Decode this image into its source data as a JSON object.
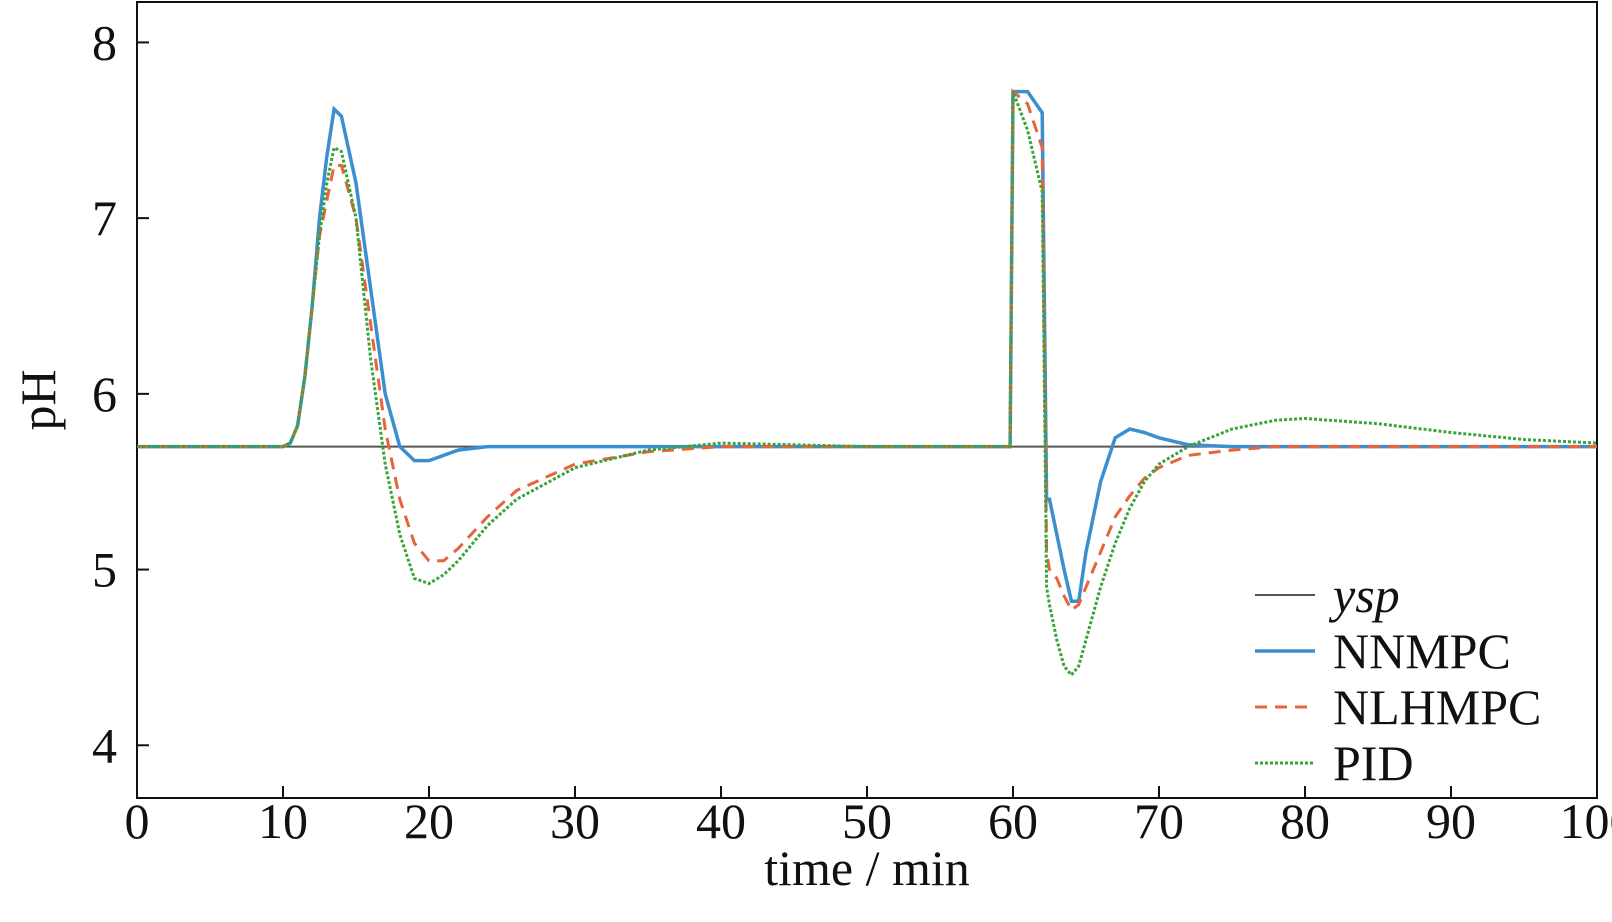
{
  "chart_data": {
    "type": "line",
    "xlabel": "time / min",
    "ylabel": "pH",
    "xlim": [
      0,
      100
    ],
    "xticks": [
      0,
      10,
      20,
      30,
      40,
      50,
      60,
      70,
      80,
      90,
      100
    ],
    "ylim": [
      3.7,
      8.23
    ],
    "yticks": [
      4,
      5,
      6,
      7,
      8
    ],
    "grid": false,
    "legend": "lower right",
    "x": [
      0,
      10,
      10.5,
      11,
      11.5,
      12,
      12.5,
      13,
      13.5,
      14,
      15,
      16,
      17,
      18,
      19,
      20,
      21,
      22,
      24,
      26,
      30,
      35,
      40,
      45,
      50,
      55,
      59.8,
      60,
      61,
      62,
      62.3,
      62.5,
      63,
      63.5,
      64,
      64.5,
      65,
      66,
      67,
      68,
      69,
      70,
      72,
      75,
      78,
      80,
      85,
      90,
      95,
      100
    ],
    "series": [
      {
        "name": "ysp",
        "color": "#555555",
        "dash": "solid",
        "width": 2,
        "values": [
          5.7,
          5.7,
          5.7,
          5.7,
          5.7,
          5.7,
          5.7,
          5.7,
          5.7,
          5.7,
          5.7,
          5.7,
          5.7,
          5.7,
          5.7,
          5.7,
          5.7,
          5.7,
          5.7,
          5.7,
          5.7,
          5.7,
          5.7,
          5.7,
          5.7,
          5.7,
          5.7,
          5.7,
          5.7,
          5.7,
          5.7,
          5.7,
          5.7,
          5.7,
          5.7,
          5.7,
          5.7,
          5.7,
          5.7,
          5.7,
          5.7,
          5.7,
          5.7,
          5.7,
          5.7,
          5.7,
          5.7,
          5.7,
          5.7,
          5.7
        ]
      },
      {
        "name": "NNMPC",
        "color": "#3b8fd0",
        "dash": "solid",
        "width": 3.5,
        "values": [
          5.7,
          5.7,
          5.72,
          5.82,
          6.1,
          6.5,
          7.0,
          7.35,
          7.62,
          7.58,
          7.2,
          6.6,
          6.0,
          5.7,
          5.62,
          5.62,
          5.65,
          5.68,
          5.7,
          5.7,
          5.7,
          5.7,
          5.7,
          5.7,
          5.7,
          5.7,
          5.7,
          7.72,
          7.72,
          7.6,
          5.4,
          5.4,
          5.2,
          5.0,
          4.82,
          4.82,
          5.1,
          5.5,
          5.75,
          5.8,
          5.78,
          5.75,
          5.71,
          5.7,
          5.7,
          5.7,
          5.7,
          5.7,
          5.7,
          5.7
        ]
      },
      {
        "name": "NLHMPC",
        "color": "#e8643a",
        "dash": "dashed",
        "width": 3,
        "values": [
          5.7,
          5.7,
          5.72,
          5.82,
          6.1,
          6.5,
          6.9,
          7.1,
          7.3,
          7.3,
          7.0,
          6.4,
          5.8,
          5.4,
          5.15,
          5.05,
          5.05,
          5.12,
          5.3,
          5.45,
          5.6,
          5.67,
          5.7,
          5.7,
          5.7,
          5.7,
          5.7,
          7.72,
          7.65,
          7.4,
          5.1,
          5.0,
          4.95,
          4.85,
          4.77,
          4.8,
          4.9,
          5.1,
          5.3,
          5.42,
          5.52,
          5.58,
          5.65,
          5.68,
          5.7,
          5.7,
          5.7,
          5.7,
          5.7,
          5.7
        ]
      },
      {
        "name": "PID",
        "color": "#3aa33a",
        "dash": "dotted",
        "width": 3,
        "values": [
          5.7,
          5.7,
          5.72,
          5.82,
          6.1,
          6.5,
          6.9,
          7.2,
          7.4,
          7.38,
          7.0,
          6.2,
          5.6,
          5.2,
          4.95,
          4.92,
          4.97,
          5.05,
          5.25,
          5.4,
          5.58,
          5.68,
          5.72,
          5.71,
          5.7,
          5.7,
          5.7,
          7.72,
          7.5,
          7.15,
          4.9,
          4.8,
          4.6,
          4.45,
          4.4,
          4.45,
          4.6,
          4.9,
          5.15,
          5.35,
          5.5,
          5.6,
          5.7,
          5.8,
          5.85,
          5.86,
          5.83,
          5.78,
          5.74,
          5.72
        ]
      }
    ]
  }
}
